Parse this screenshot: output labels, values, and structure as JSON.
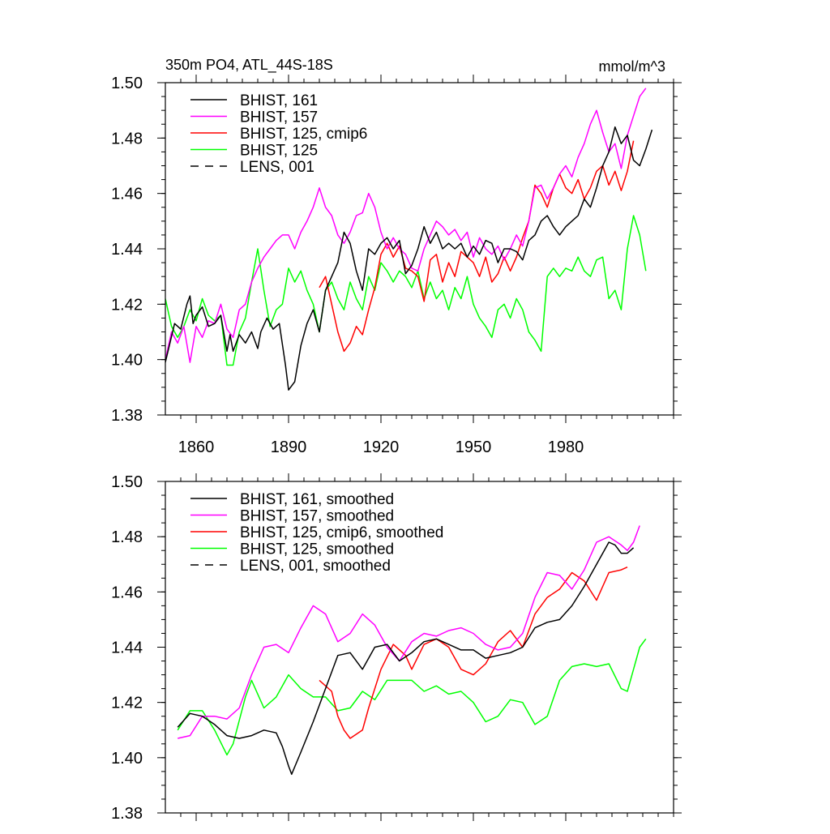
{
  "chart_data": [
    {
      "type": "line",
      "title_left": "350m PO4, ATL_44S-18S",
      "title_right": "mmol/m^3",
      "ylim": [
        1.38,
        1.5
      ],
      "yticks": [
        1.38,
        1.4,
        1.42,
        1.44,
        1.46,
        1.48,
        1.5
      ],
      "ytick_labels": [
        "1.38",
        "1.40",
        "1.42",
        "1.44",
        "1.46",
        "1.48",
        "1.50"
      ],
      "xlim": [
        1850,
        2015
      ],
      "xticks": [
        1860,
        1890,
        1920,
        1950,
        1980
      ],
      "xtick_labels": [
        "1860",
        "1890",
        "1920",
        "1950",
        "1980"
      ],
      "grid": false,
      "legend_position": "top-left",
      "series": [
        {
          "name": "BHIST, 161",
          "color": "#000000",
          "dash": "solid",
          "x": [
            1850,
            1853,
            1855,
            1857,
            1858,
            1859,
            1860,
            1862,
            1864,
            1866,
            1868,
            1870,
            1871,
            1872,
            1874,
            1876,
            1878,
            1880,
            1881,
            1883,
            1885,
            1887,
            1889,
            1890,
            1892,
            1894,
            1896,
            1898,
            1900,
            1902,
            1904,
            1906,
            1908,
            1910,
            1912,
            1914,
            1916,
            1918,
            1920,
            1922,
            1924,
            1926,
            1928,
            1930,
            1932,
            1934,
            1936,
            1938,
            1940,
            1942,
            1944,
            1946,
            1948,
            1950,
            1952,
            1954,
            1956,
            1958,
            1960,
            1962,
            1964,
            1966,
            1968,
            1970,
            1972,
            1974,
            1976,
            1978,
            1980,
            1982,
            1984,
            1986,
            1988,
            1990,
            1992,
            1994,
            1996,
            1998,
            2000,
            2002,
            2004,
            2006,
            2008
          ],
          "values": [
            1.399,
            1.413,
            1.411,
            1.42,
            1.423,
            1.413,
            1.416,
            1.419,
            1.412,
            1.413,
            1.416,
            1.403,
            1.409,
            1.403,
            1.409,
            1.406,
            1.41,
            1.404,
            1.41,
            1.415,
            1.411,
            1.413,
            1.398,
            1.389,
            1.392,
            1.405,
            1.413,
            1.418,
            1.41,
            1.425,
            1.43,
            1.435,
            1.446,
            1.442,
            1.432,
            1.425,
            1.44,
            1.438,
            1.442,
            1.444,
            1.44,
            1.443,
            1.431,
            1.434,
            1.44,
            1.448,
            1.442,
            1.446,
            1.44,
            1.442,
            1.44,
            1.442,
            1.437,
            1.441,
            1.438,
            1.443,
            1.442,
            1.435,
            1.44,
            1.44,
            1.439,
            1.436,
            1.443,
            1.445,
            1.45,
            1.452,
            1.448,
            1.445,
            1.448,
            1.45,
            1.452,
            1.458,
            1.455,
            1.462,
            1.47,
            1.475,
            1.484,
            1.478,
            1.481,
            1.472,
            1.47,
            1.476,
            1.483
          ]
        },
        {
          "name": "BHIST, 157",
          "color": "#ff00ff",
          "dash": "solid",
          "x": [
            1850,
            1852,
            1854,
            1856,
            1858,
            1860,
            1862,
            1864,
            1866,
            1868,
            1870,
            1872,
            1874,
            1876,
            1878,
            1880,
            1882,
            1884,
            1886,
            1888,
            1890,
            1892,
            1894,
            1896,
            1898,
            1900,
            1902,
            1904,
            1906,
            1908,
            1910,
            1912,
            1914,
            1916,
            1918,
            1920,
            1922,
            1924,
            1926,
            1928,
            1930,
            1932,
            1934,
            1936,
            1938,
            1940,
            1942,
            1944,
            1946,
            1948,
            1950,
            1952,
            1954,
            1956,
            1958,
            1960,
            1962,
            1964,
            1966,
            1968,
            1970,
            1972,
            1974,
            1976,
            1978,
            1980,
            1982,
            1984,
            1986,
            1988,
            1990,
            1992,
            1994,
            1996,
            1998,
            2000,
            2002,
            2004,
            2006
          ],
          "values": [
            1.4,
            1.41,
            1.406,
            1.412,
            1.399,
            1.412,
            1.408,
            1.414,
            1.413,
            1.42,
            1.411,
            1.408,
            1.418,
            1.42,
            1.428,
            1.433,
            1.437,
            1.44,
            1.443,
            1.445,
            1.445,
            1.44,
            1.446,
            1.45,
            1.455,
            1.462,
            1.455,
            1.452,
            1.445,
            1.442,
            1.446,
            1.452,
            1.453,
            1.46,
            1.455,
            1.446,
            1.44,
            1.444,
            1.44,
            1.438,
            1.433,
            1.432,
            1.44,
            1.445,
            1.45,
            1.448,
            1.445,
            1.447,
            1.443,
            1.446,
            1.437,
            1.444,
            1.44,
            1.438,
            1.441,
            1.436,
            1.44,
            1.445,
            1.441,
            1.45,
            1.462,
            1.463,
            1.458,
            1.462,
            1.467,
            1.47,
            1.466,
            1.473,
            1.478,
            1.485,
            1.49,
            1.482,
            1.475,
            1.478,
            1.469,
            1.481,
            1.488,
            1.495,
            1.498
          ]
        },
        {
          "name": "BHIST, 125, cmip6",
          "color": "#ff0000",
          "dash": "solid",
          "x": [
            1900,
            1902,
            1904,
            1906,
            1908,
            1910,
            1912,
            1914,
            1916,
            1918,
            1920,
            1922,
            1924,
            1926,
            1928,
            1930,
            1932,
            1934,
            1936,
            1938,
            1940,
            1942,
            1944,
            1946,
            1948,
            1950,
            1952,
            1954,
            1956,
            1958,
            1960,
            1962,
            1964,
            1966,
            1968,
            1970,
            1972,
            1974,
            1976,
            1978,
            1980,
            1982,
            1984,
            1986,
            1988,
            1990,
            1992,
            1994,
            1996,
            1998,
            2000,
            2002
          ],
          "values": [
            1.426,
            1.43,
            1.42,
            1.41,
            1.403,
            1.406,
            1.412,
            1.409,
            1.418,
            1.426,
            1.438,
            1.442,
            1.437,
            1.441,
            1.433,
            1.432,
            1.43,
            1.421,
            1.436,
            1.438,
            1.428,
            1.435,
            1.43,
            1.439,
            1.437,
            1.435,
            1.43,
            1.437,
            1.428,
            1.431,
            1.437,
            1.432,
            1.437,
            1.444,
            1.45,
            1.463,
            1.46,
            1.455,
            1.462,
            1.467,
            1.462,
            1.46,
            1.465,
            1.458,
            1.462,
            1.468,
            1.47,
            1.463,
            1.468,
            1.461,
            1.468,
            1.479
          ]
        },
        {
          "name": "BHIST, 125",
          "color": "#00ff00",
          "dash": "solid",
          "x": [
            1850,
            1852,
            1854,
            1856,
            1858,
            1860,
            1862,
            1864,
            1866,
            1868,
            1870,
            1872,
            1874,
            1876,
            1878,
            1880,
            1882,
            1884,
            1886,
            1888,
            1890,
            1892,
            1894,
            1896,
            1898,
            1900,
            1902,
            1904,
            1906,
            1908,
            1910,
            1912,
            1914,
            1916,
            1918,
            1920,
            1922,
            1924,
            1926,
            1928,
            1930,
            1932,
            1934,
            1936,
            1938,
            1940,
            1942,
            1944,
            1946,
            1948,
            1950,
            1952,
            1954,
            1956,
            1958,
            1960,
            1962,
            1964,
            1966,
            1968,
            1970,
            1972,
            1974,
            1976,
            1978,
            1980,
            1982,
            1984,
            1986,
            1988,
            1990,
            1992,
            1994,
            1996,
            1998,
            2000,
            2002,
            2004,
            2006
          ],
          "values": [
            1.422,
            1.412,
            1.408,
            1.412,
            1.418,
            1.414,
            1.422,
            1.416,
            1.414,
            1.416,
            1.398,
            1.398,
            1.41,
            1.415,
            1.428,
            1.44,
            1.425,
            1.412,
            1.418,
            1.42,
            1.433,
            1.428,
            1.432,
            1.425,
            1.42,
            1.41,
            1.425,
            1.428,
            1.422,
            1.418,
            1.428,
            1.422,
            1.418,
            1.43,
            1.425,
            1.435,
            1.432,
            1.428,
            1.432,
            1.43,
            1.426,
            1.432,
            1.422,
            1.428,
            1.422,
            1.425,
            1.418,
            1.426,
            1.422,
            1.43,
            1.42,
            1.415,
            1.412,
            1.408,
            1.418,
            1.42,
            1.415,
            1.422,
            1.418,
            1.41,
            1.407,
            1.403,
            1.43,
            1.433,
            1.43,
            1.433,
            1.432,
            1.437,
            1.432,
            1.43,
            1.436,
            1.437,
            1.422,
            1.425,
            1.418,
            1.44,
            1.452,
            1.445,
            1.432
          ]
        },
        {
          "name": "LENS, 001",
          "color": "#000000",
          "dash": "dashed",
          "x": [],
          "values": []
        }
      ]
    },
    {
      "type": "line",
      "ylim": [
        1.38,
        1.5
      ],
      "yticks": [
        1.38,
        1.4,
        1.42,
        1.44,
        1.46,
        1.48,
        1.5
      ],
      "ytick_labels": [
        "1.38",
        "1.40",
        "1.42",
        "1.44",
        "1.46",
        "1.48",
        "1.50"
      ],
      "xlim": [
        1850,
        2015
      ],
      "xticks": [
        1860,
        1890,
        1920,
        1950,
        1980
      ],
      "xtick_labels": [],
      "grid": false,
      "legend_position": "top-left",
      "series": [
        {
          "name": "BHIST, 161, smoothed",
          "color": "#000000",
          "dash": "solid",
          "x": [
            1854,
            1858,
            1862,
            1866,
            1870,
            1874,
            1878,
            1882,
            1886,
            1888,
            1890,
            1891,
            1894,
            1898,
            1902,
            1906,
            1910,
            1914,
            1918,
            1922,
            1926,
            1930,
            1934,
            1938,
            1942,
            1946,
            1950,
            1954,
            1958,
            1962,
            1966,
            1970,
            1974,
            1978,
            1982,
            1986,
            1990,
            1994,
            1996,
            1998,
            2000,
            2002
          ],
          "values": [
            1.411,
            1.416,
            1.415,
            1.412,
            1.408,
            1.407,
            1.408,
            1.41,
            1.409,
            1.404,
            1.397,
            1.394,
            1.402,
            1.413,
            1.425,
            1.437,
            1.438,
            1.432,
            1.44,
            1.441,
            1.435,
            1.438,
            1.442,
            1.443,
            1.441,
            1.439,
            1.439,
            1.436,
            1.437,
            1.438,
            1.44,
            1.447,
            1.449,
            1.45,
            1.455,
            1.462,
            1.47,
            1.478,
            1.477,
            1.474,
            1.474,
            1.476
          ]
        },
        {
          "name": "BHIST, 157, smoothed",
          "color": "#ff00ff",
          "dash": "solid",
          "x": [
            1854,
            1858,
            1862,
            1866,
            1870,
            1874,
            1878,
            1882,
            1886,
            1890,
            1894,
            1898,
            1902,
            1906,
            1910,
            1914,
            1918,
            1922,
            1926,
            1930,
            1934,
            1938,
            1942,
            1946,
            1950,
            1954,
            1958,
            1962,
            1966,
            1970,
            1974,
            1978,
            1982,
            1986,
            1990,
            1994,
            1998,
            2000,
            2002,
            2004
          ],
          "values": [
            1.407,
            1.408,
            1.415,
            1.415,
            1.414,
            1.418,
            1.43,
            1.44,
            1.441,
            1.438,
            1.447,
            1.455,
            1.452,
            1.442,
            1.445,
            1.452,
            1.448,
            1.44,
            1.435,
            1.442,
            1.445,
            1.444,
            1.446,
            1.447,
            1.445,
            1.441,
            1.439,
            1.44,
            1.445,
            1.458,
            1.467,
            1.466,
            1.461,
            1.468,
            1.478,
            1.48,
            1.477,
            1.475,
            1.478,
            1.484
          ]
        },
        {
          "name": "BHIST, 125, cmip6, smoothed",
          "color": "#ff0000",
          "dash": "solid",
          "x": [
            1900,
            1904,
            1906,
            1908,
            1910,
            1914,
            1916,
            1920,
            1924,
            1928,
            1930,
            1934,
            1938,
            1942,
            1946,
            1950,
            1954,
            1958,
            1962,
            1966,
            1970,
            1974,
            1978,
            1982,
            1986,
            1990,
            1994,
            1998,
            2000
          ],
          "values": [
            1.428,
            1.424,
            1.415,
            1.41,
            1.407,
            1.41,
            1.418,
            1.432,
            1.441,
            1.437,
            1.432,
            1.441,
            1.443,
            1.44,
            1.432,
            1.43,
            1.434,
            1.442,
            1.446,
            1.44,
            1.452,
            1.458,
            1.461,
            1.467,
            1.464,
            1.457,
            1.467,
            1.468,
            1.469
          ]
        },
        {
          "name": "BHIST, 125, smoothed",
          "color": "#00ff00",
          "dash": "solid",
          "x": [
            1854,
            1858,
            1862,
            1866,
            1870,
            1872,
            1876,
            1878,
            1882,
            1886,
            1890,
            1894,
            1898,
            1902,
            1906,
            1910,
            1914,
            1918,
            1922,
            1926,
            1930,
            1934,
            1938,
            1942,
            1946,
            1950,
            1954,
            1958,
            1962,
            1966,
            1970,
            1974,
            1978,
            1982,
            1986,
            1990,
            1994,
            1998,
            2000,
            2002,
            2004,
            2006
          ],
          "values": [
            1.41,
            1.417,
            1.417,
            1.41,
            1.401,
            1.405,
            1.422,
            1.428,
            1.418,
            1.422,
            1.43,
            1.425,
            1.422,
            1.422,
            1.417,
            1.418,
            1.424,
            1.421,
            1.428,
            1.428,
            1.428,
            1.424,
            1.426,
            1.423,
            1.424,
            1.42,
            1.413,
            1.415,
            1.421,
            1.42,
            1.412,
            1.415,
            1.428,
            1.433,
            1.434,
            1.433,
            1.434,
            1.425,
            1.424,
            1.432,
            1.44,
            1.443
          ]
        },
        {
          "name": "LENS, 001, smoothed",
          "color": "#000000",
          "dash": "dashed",
          "x": [],
          "values": []
        }
      ]
    }
  ]
}
